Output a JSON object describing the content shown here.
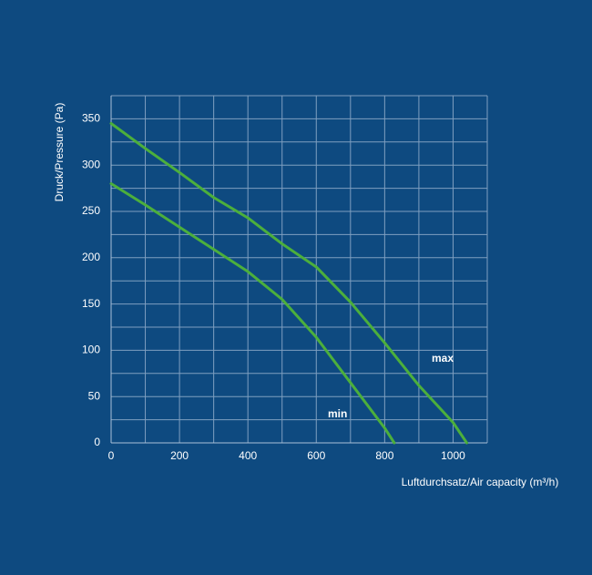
{
  "chart_data": {
    "type": "line",
    "xlabel": "Luftdurchsatz/Air capacity (m³/h)",
    "ylabel": "Druck/Pressure (Pa)",
    "xlim": [
      0,
      1100
    ],
    "xticks": [
      0,
      200,
      400,
      600,
      800,
      1000
    ],
    "xgrid": [
      100,
      300,
      500,
      700,
      900,
      1100
    ],
    "ylim": [
      0,
      375
    ],
    "yticks": [
      0,
      50,
      100,
      150,
      200,
      250,
      300,
      350
    ],
    "ygrid": [
      25,
      75,
      125,
      175,
      225,
      275,
      325,
      375
    ],
    "grid": true,
    "series": [
      {
        "name": "max",
        "color": "#4caf3c",
        "x": [
          0,
          100,
          200,
          300,
          400,
          500,
          600,
          700,
          800,
          900,
          1000,
          1040
        ],
        "values": [
          345,
          318,
          292,
          265,
          243,
          215,
          190,
          152,
          108,
          62,
          22,
          0
        ]
      },
      {
        "name": "min",
        "color": "#4caf3c",
        "x": [
          0,
          100,
          200,
          300,
          400,
          500,
          600,
          700,
          800,
          828
        ],
        "values": [
          280,
          257,
          233,
          209,
          185,
          155,
          114,
          65,
          16,
          0
        ]
      }
    ]
  }
}
